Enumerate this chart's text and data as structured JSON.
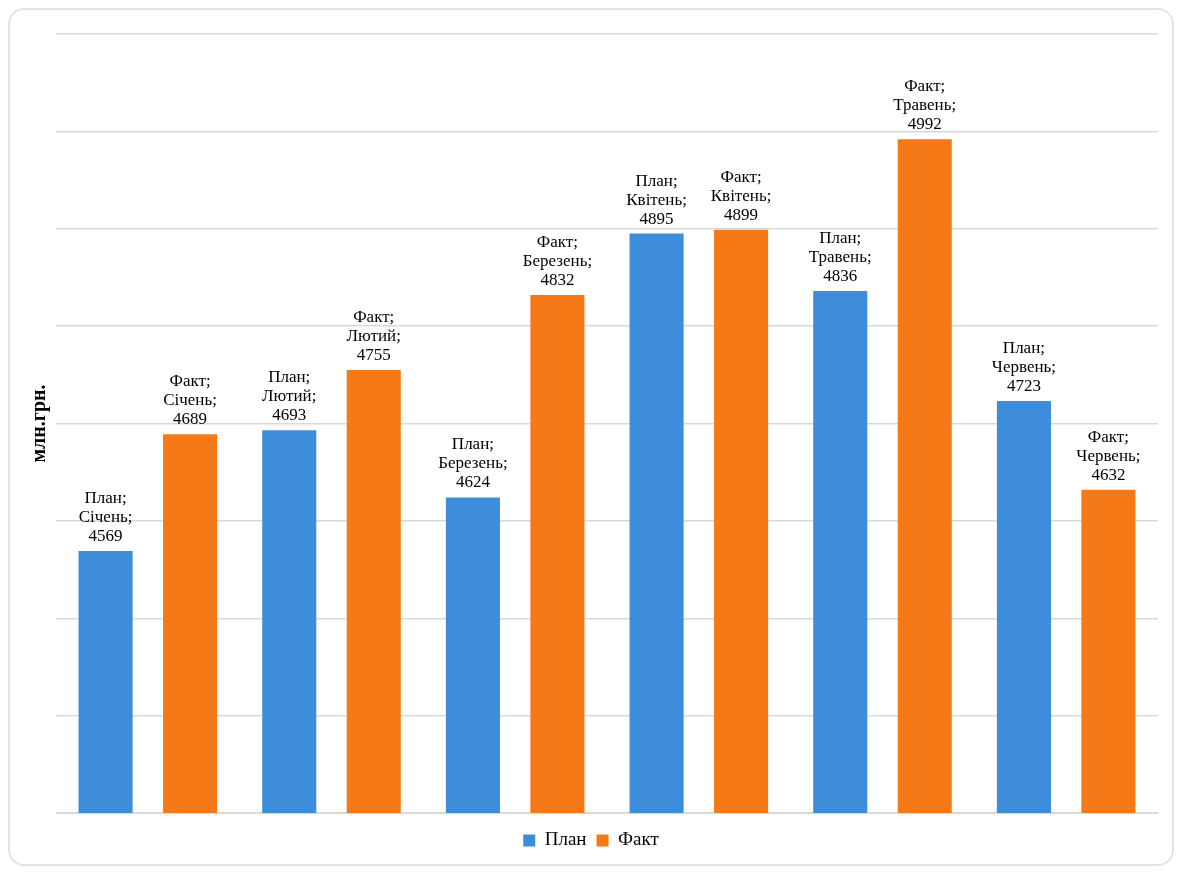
{
  "chart_data": {
    "type": "bar",
    "ylabel": "млн.грн.",
    "categories": [
      null,
      null,
      null,
      null,
      null,
      null
    ],
    "series": [
      {
        "name": "План",
        "color": "#3d8ddb",
        "values": [
          4569,
          4693,
          4624,
          4895,
          4836,
          4723
        ],
        "value_labels": [
          "План; Січень; 4569",
          "План; Лютий; 4693",
          "План; Березень; 4624",
          "План; Квітень; 4895",
          "План; Травень; 4836",
          "План; Червень; 4723"
        ]
      },
      {
        "name": "Факт",
        "color": "#f57a17",
        "values": [
          4689,
          4755,
          4832,
          4899,
          4992,
          4632
        ],
        "value_labels": [
          "Факт; Січень; 4689",
          "Факт; Лютий; 4755",
          "Факт; Березень; 4832",
          "Факт; Квітень; 4899",
          "Факт; Травень; 4992",
          "Факт; Червень; 4632"
        ]
      }
    ],
    "ylim": [
      4300,
      5100
    ],
    "yticks": [
      {
        "value": 4300,
        "label": null
      },
      {
        "value": 4400,
        "label": null
      },
      {
        "value": 4500,
        "label": null
      },
      {
        "value": 4600,
        "label": null
      },
      {
        "value": 4700,
        "label": null
      },
      {
        "value": 4800,
        "label": null
      },
      {
        "value": 4900,
        "label": null
      },
      {
        "value": 5000,
        "label": null
      },
      {
        "value": 5100,
        "label": null
      }
    ],
    "grid": "y",
    "legend": "bottom",
    "tick_labels": false
  }
}
